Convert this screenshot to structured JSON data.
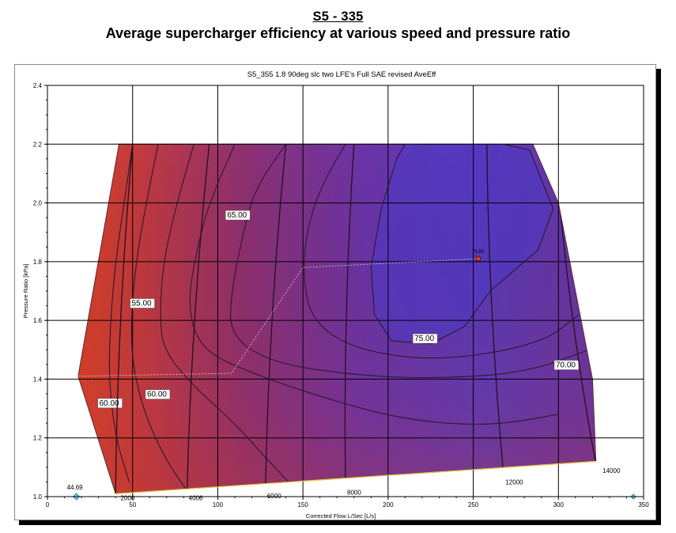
{
  "header": {
    "title": "S5 - 335",
    "subtitle": "Average supercharger efficiency at various speed and pressure ratio"
  },
  "colors": {
    "low_efficiency": "#d43a2c",
    "high_efficiency": "#5638bc",
    "contour_line": "#2a1830",
    "grid": "#000000"
  },
  "chart_data": {
    "type": "contour",
    "title": "S5_355 1.8 90deg slc  two LFE's Full SAE revised AveEff",
    "xlabel": "Corrected Flow L/Sec [L/s]",
    "ylabel": "Pressure Ratio [kPa]",
    "xlim": [
      0,
      350
    ],
    "ylim": [
      1.0,
      2.4
    ],
    "xticks": [
      0,
      50,
      100,
      150,
      200,
      250,
      300,
      350
    ],
    "xtick_labels": [
      "0",
      "50",
      "100",
      "150",
      "200",
      "250",
      "300",
      "350"
    ],
    "yticks": [
      1.0,
      1.2,
      1.4,
      1.6,
      1.8,
      2.0,
      2.2,
      2.4
    ],
    "ytick_labels": [
      "1.0",
      "1.2",
      "1.4",
      "1.6",
      "1.8",
      "2.0",
      "2.2",
      "2.4"
    ],
    "grid": true,
    "map_boundary": [
      [
        18,
        1.41
      ],
      [
        42,
        2.2
      ],
      [
        285,
        2.2
      ],
      [
        300,
        2.0
      ],
      [
        320,
        1.4
      ],
      [
        322,
        1.12
      ],
      [
        40,
        1.01
      ]
    ],
    "efficiency_contours": [
      {
        "level": "55.00",
        "label_at": [
          49,
          1.65
        ]
      },
      {
        "level": "60.00",
        "label_at": [
          58,
          1.34
        ]
      },
      {
        "level": "60.00",
        "label_at": [
          30,
          1.31
        ]
      },
      {
        "level": "65.00",
        "label_at": [
          105,
          1.95
        ]
      },
      {
        "level": "70.00",
        "label_at": [
          298,
          1.44
        ]
      },
      {
        "level": "75.00",
        "label_at": [
          215,
          1.53
        ]
      }
    ],
    "speed_lines": [
      {
        "rpm": "2000",
        "label_at": [
          42,
          0.998
        ]
      },
      {
        "rpm": "4000",
        "label_at": [
          82,
          0.998
        ]
      },
      {
        "rpm": "6000",
        "label_at": [
          128,
          1.005
        ]
      },
      {
        "rpm": "8000",
        "label_at": [
          175,
          1.018
        ]
      },
      {
        "rpm": "12000",
        "label_at": [
          268,
          1.052
        ]
      },
      {
        "rpm": "14000",
        "label_at": [
          325,
          1.092
        ]
      }
    ],
    "peak_point": {
      "x": 253,
      "y": 1.81,
      "label": "76.90"
    },
    "min_marker": {
      "x": 17,
      "y": 1.0,
      "label": "44.69"
    },
    "extra_marker": {
      "x": 344,
      "y": 1.0
    }
  }
}
